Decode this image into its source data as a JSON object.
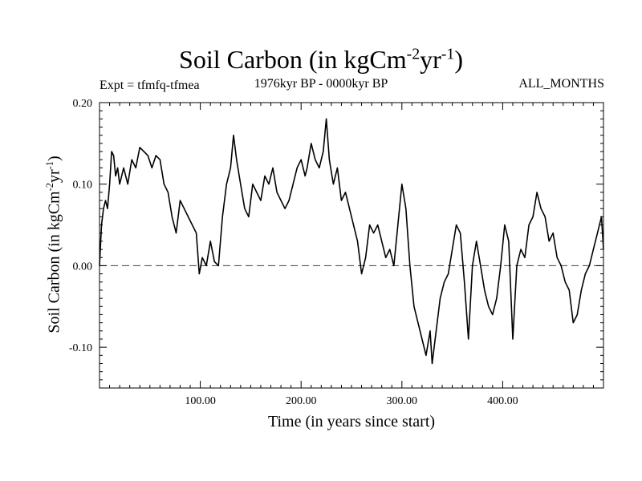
{
  "chart_data": {
    "type": "line",
    "title": "Soil Carbon (in kgCm",
    "title_exp1": "-2",
    "title_mid": "yr",
    "title_exp2": "-1",
    "title_end": ")",
    "left_header": "Expt = tfmfq-tfmea",
    "center_header": "1976kyr BP - 0000kyr BP",
    "right_header": "ALL_MONTHS",
    "xlabel": "Time (in years since start)",
    "ylabel": "Soil Carbon (in kgCm",
    "ylabel_exp1": "-2",
    "ylabel_mid": "yr",
    "ylabel_exp2": "-1",
    "ylabel_end": ")",
    "xlim": [
      0,
      500
    ],
    "ylim": [
      -0.15,
      0.2
    ],
    "xticks": [
      100,
      200,
      300,
      400
    ],
    "xtick_labels": [
      "100.00",
      "200.00",
      "300.00",
      "400.00"
    ],
    "yticks": [
      -0.1,
      0.0,
      0.1,
      0.2
    ],
    "ytick_labels": [
      "-0.10",
      "0.00",
      "0.10",
      "0.20"
    ],
    "reference_line": 0.0,
    "series": [
      {
        "name": "Soil Carbon",
        "x": [
          0,
          2,
          4,
          6,
          8,
          10,
          12,
          14,
          16,
          18,
          20,
          24,
          28,
          32,
          36,
          40,
          44,
          48,
          52,
          56,
          60,
          64,
          68,
          72,
          76,
          80,
          84,
          88,
          92,
          96,
          99,
          102,
          106,
          110,
          114,
          118,
          122,
          126,
          130,
          133,
          136,
          140,
          144,
          148,
          152,
          156,
          160,
          164,
          168,
          172,
          176,
          180,
          184,
          188,
          192,
          196,
          200,
          204,
          206,
          210,
          214,
          218,
          222,
          225,
          228,
          232,
          236,
          240,
          244,
          248,
          252,
          256,
          260,
          264,
          268,
          272,
          276,
          280,
          284,
          288,
          292,
          296,
          300,
          304,
          308,
          312,
          316,
          320,
          324,
          328,
          330,
          334,
          338,
          342,
          346,
          350,
          354,
          358,
          362,
          366,
          370,
          374,
          378,
          382,
          386,
          390,
          394,
          398,
          402,
          406,
          410,
          414,
          418,
          422,
          426,
          430,
          434,
          438,
          442,
          446,
          450,
          454,
          458,
          462,
          466,
          470,
          474,
          478,
          482,
          486,
          490,
          494,
          498,
          500
        ],
        "values": [
          0.0,
          0.05,
          0.07,
          0.08,
          0.07,
          0.1,
          0.14,
          0.135,
          0.11,
          0.12,
          0.1,
          0.12,
          0.1,
          0.13,
          0.12,
          0.145,
          0.14,
          0.135,
          0.12,
          0.135,
          0.13,
          0.1,
          0.09,
          0.06,
          0.04,
          0.08,
          0.07,
          0.06,
          0.05,
          0.04,
          -0.01,
          0.01,
          0.0,
          0.03,
          0.005,
          0.0,
          0.06,
          0.1,
          0.12,
          0.16,
          0.13,
          0.1,
          0.07,
          0.06,
          0.1,
          0.09,
          0.08,
          0.11,
          0.1,
          0.12,
          0.09,
          0.08,
          0.07,
          0.08,
          0.1,
          0.12,
          0.13,
          0.11,
          0.12,
          0.15,
          0.13,
          0.12,
          0.14,
          0.18,
          0.13,
          0.1,
          0.12,
          0.08,
          0.09,
          0.07,
          0.05,
          0.03,
          -0.01,
          0.01,
          0.05,
          0.04,
          0.05,
          0.03,
          0.01,
          0.02,
          0.0,
          0.05,
          0.1,
          0.07,
          0.0,
          -0.05,
          -0.07,
          -0.09,
          -0.11,
          -0.08,
          -0.12,
          -0.08,
          -0.04,
          -0.02,
          -0.01,
          0.02,
          0.05,
          0.04,
          -0.02,
          -0.09,
          0.0,
          0.03,
          0.0,
          -0.03,
          -0.05,
          -0.06,
          -0.04,
          0.0,
          0.05,
          0.03,
          -0.09,
          0.0,
          0.02,
          0.01,
          0.05,
          0.06,
          0.09,
          0.07,
          0.06,
          0.03,
          0.04,
          0.01,
          0.0,
          -0.02,
          -0.03,
          -0.07,
          -0.06,
          -0.03,
          -0.01,
          0.0,
          0.02,
          0.04,
          0.06,
          0.02
        ]
      }
    ]
  }
}
